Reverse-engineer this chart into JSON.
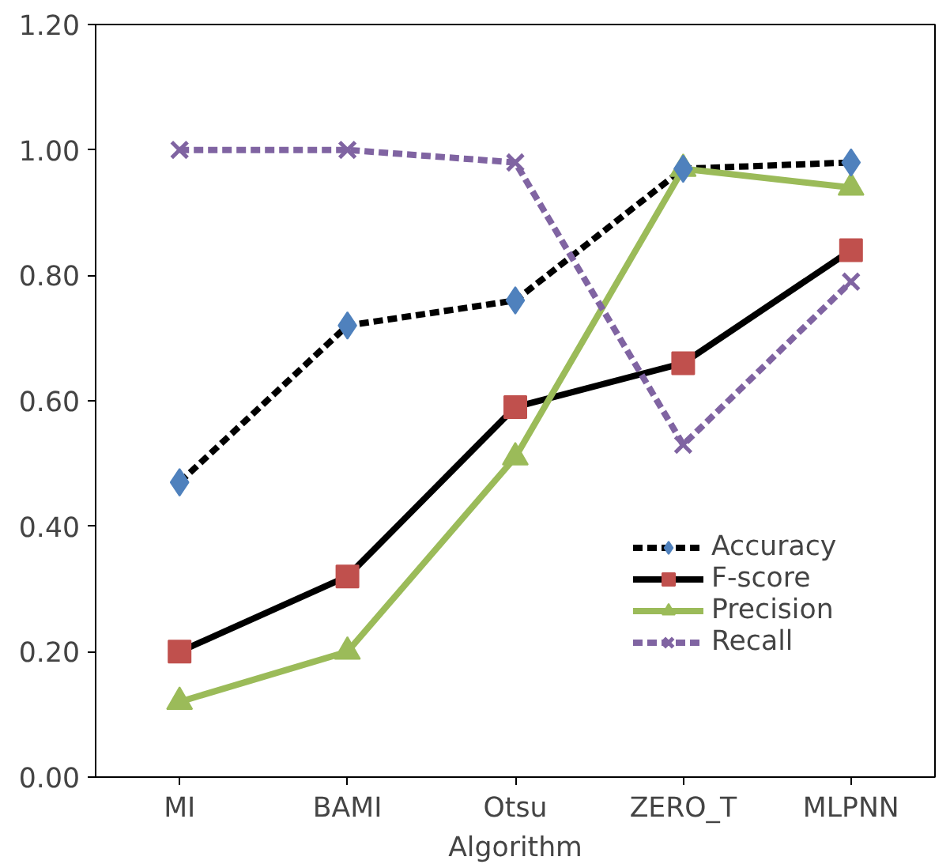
{
  "chart_data": {
    "type": "line",
    "xlabel": "Algorithm",
    "categories": [
      "MI",
      "BAMI",
      "Otsu",
      "ZERO_T",
      "MLPNN"
    ],
    "series": [
      {
        "name": "Accuracy",
        "color": "#000000",
        "marker": "diamond",
        "colors": [
          "#4f81bd",
          "#4f81bd",
          "#4f81bd",
          "#4f81bd",
          "#4f81bd"
        ],
        "line_style": "dashed",
        "values": [
          0.47,
          0.72,
          0.76,
          0.97,
          0.98
        ]
      },
      {
        "name": "F-score",
        "color": "#000000",
        "marker": "square",
        "colors": [
          "#c0504d",
          "#c0504d",
          "#c0504d",
          "#c0504d",
          "#c0504d"
        ],
        "line_style": "solid",
        "values": [
          0.2,
          0.32,
          0.59,
          0.66,
          0.84
        ]
      },
      {
        "name": "Precision",
        "color": "#9bbb59",
        "marker": "triangle",
        "colors": [
          "#9bbb59",
          "#9bbb59",
          "#9bbb59",
          "#9bbb59",
          "#9bbb59"
        ],
        "line_style": "solid",
        "values": [
          0.12,
          0.2,
          0.51,
          0.97,
          0.94
        ]
      },
      {
        "name": "Recall",
        "color": "#8064a2",
        "marker": "cross",
        "colors": [
          "#8064a2",
          "#8064a2",
          "#8064a2",
          "#8064a2",
          "#8064a2"
        ],
        "line_style": "dashed",
        "values": [
          1.0,
          1.0,
          0.98,
          0.53,
          0.79
        ]
      }
    ],
    "ylim": [
      0,
      1.2
    ],
    "yticks": [
      {
        "value": 0,
        "label": "0.00"
      },
      {
        "value": 0.2,
        "label": "0.20"
      },
      {
        "value": 0.4,
        "label": "0.40"
      },
      {
        "value": 0.6,
        "label": "0.60"
      },
      {
        "value": 0.8,
        "label": "0.80"
      },
      {
        "value": 1.0,
        "label": "1.00"
      },
      {
        "value": 1.2,
        "label": "1.20"
      }
    ],
    "grid": false,
    "legend": "right"
  }
}
